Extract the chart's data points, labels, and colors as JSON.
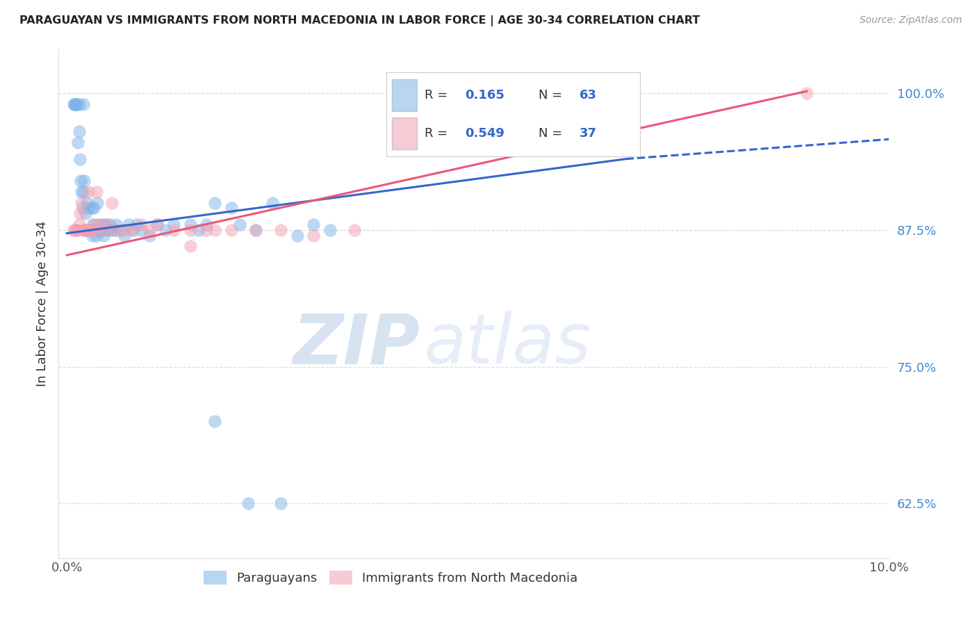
{
  "title": "PARAGUAYAN VS IMMIGRANTS FROM NORTH MACEDONIA IN LABOR FORCE | AGE 30-34 CORRELATION CHART",
  "source": "Source: ZipAtlas.com",
  "ylabel": "In Labor Force | Age 30-34",
  "xlim": [
    0.0,
    0.1
  ],
  "ylim": [
    0.575,
    1.04
  ],
  "yticks": [
    0.625,
    0.75,
    0.875,
    1.0
  ],
  "ytick_labels": [
    "62.5%",
    "75.0%",
    "87.5%",
    "100.0%"
  ],
  "xtick_positions": [
    0.0,
    0.02,
    0.04,
    0.06,
    0.08,
    0.1
  ],
  "xtick_labels": [
    "0.0%",
    "",
    "",
    "",
    "",
    "10.0%"
  ],
  "blue_color": "#7EB3E8",
  "pink_color": "#F4A0B0",
  "blue_line_color": "#3366CC",
  "pink_line_color": "#EE5577",
  "watermark_zip": "ZIP",
  "watermark_atlas": "atlas",
  "blue_r": "0.165",
  "blue_n": "63",
  "pink_r": "0.549",
  "pink_n": "37",
  "paraguayan_x": [
    0.0008,
    0.001,
    0.001,
    0.001,
    0.0012,
    0.0013,
    0.0015,
    0.0015,
    0.0016,
    0.0017,
    0.0018,
    0.0019,
    0.002,
    0.002,
    0.0021,
    0.0022,
    0.0023,
    0.0024,
    0.0025,
    0.0026,
    0.0028,
    0.003,
    0.0031,
    0.0032,
    0.0033,
    0.0035,
    0.0036,
    0.0037,
    0.0038,
    0.004,
    0.0042,
    0.0044,
    0.0045,
    0.0047,
    0.005,
    0.0052,
    0.0055,
    0.0058,
    0.006,
    0.0065,
    0.007,
    0.0075,
    0.008,
    0.0085,
    0.009,
    0.01,
    0.011,
    0.012,
    0.013,
    0.015,
    0.016,
    0.017,
    0.018,
    0.02,
    0.021,
    0.023,
    0.025,
    0.028,
    0.03,
    0.032,
    0.018,
    0.022,
    0.026
  ],
  "paraguayan_y": [
    0.99,
    0.99,
    0.99,
    0.99,
    0.99,
    0.955,
    0.99,
    0.965,
    0.94,
    0.92,
    0.91,
    0.895,
    0.99,
    0.91,
    0.92,
    0.875,
    0.89,
    0.9,
    0.875,
    0.895,
    0.875,
    0.895,
    0.87,
    0.88,
    0.895,
    0.875,
    0.87,
    0.9,
    0.88,
    0.875,
    0.875,
    0.88,
    0.87,
    0.88,
    0.875,
    0.88,
    0.875,
    0.875,
    0.88,
    0.875,
    0.87,
    0.88,
    0.875,
    0.88,
    0.875,
    0.87,
    0.88,
    0.875,
    0.88,
    0.88,
    0.875,
    0.88,
    0.9,
    0.895,
    0.88,
    0.875,
    0.9,
    0.87,
    0.88,
    0.875,
    0.7,
    0.625,
    0.625
  ],
  "macedonia_x": [
    0.0008,
    0.001,
    0.0011,
    0.0013,
    0.0015,
    0.0016,
    0.0018,
    0.002,
    0.0022,
    0.0024,
    0.0026,
    0.0028,
    0.003,
    0.0032,
    0.0034,
    0.0036,
    0.004,
    0.0045,
    0.005,
    0.0055,
    0.006,
    0.007,
    0.008,
    0.009,
    0.01,
    0.011,
    0.013,
    0.015,
    0.017,
    0.02,
    0.023,
    0.026,
    0.03,
    0.035,
    0.015,
    0.018,
    0.09
  ],
  "macedonia_y": [
    0.875,
    0.875,
    0.875,
    0.875,
    0.88,
    0.89,
    0.9,
    0.875,
    0.875,
    0.875,
    0.91,
    0.875,
    0.875,
    0.88,
    0.875,
    0.91,
    0.88,
    0.875,
    0.88,
    0.9,
    0.875,
    0.875,
    0.875,
    0.88,
    0.875,
    0.88,
    0.875,
    0.875,
    0.875,
    0.875,
    0.875,
    0.875,
    0.87,
    0.875,
    0.86,
    0.875,
    1.0
  ]
}
